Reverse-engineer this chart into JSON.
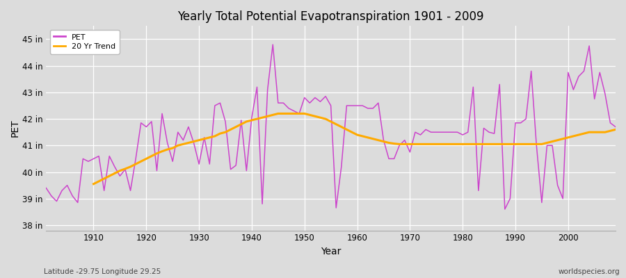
{
  "title": "Yearly Total Potential Evapotranspiration 1901 - 2009",
  "xlabel": "Year",
  "ylabel": "PET",
  "bottom_left_label": "Latitude -29.75 Longitude 29.25",
  "bottom_right_label": "worldspecies.org",
  "pet_color": "#cc44cc",
  "trend_color": "#ffaa00",
  "bg_color": "#dcdcdc",
  "ylim": [
    37.8,
    45.5
  ],
  "yticks": [
    38,
    39,
    40,
    41,
    42,
    43,
    44,
    45
  ],
  "ytick_labels": [
    "38 in",
    "39 in",
    "40 in",
    "41 in",
    "42 in",
    "43 in",
    "44 in",
    "45 in"
  ],
  "years": [
    1901,
    1902,
    1903,
    1904,
    1905,
    1906,
    1907,
    1908,
    1909,
    1910,
    1911,
    1912,
    1913,
    1914,
    1915,
    1916,
    1917,
    1918,
    1919,
    1920,
    1921,
    1922,
    1923,
    1924,
    1925,
    1926,
    1927,
    1928,
    1929,
    1930,
    1931,
    1932,
    1933,
    1934,
    1935,
    1936,
    1937,
    1938,
    1939,
    1940,
    1941,
    1942,
    1943,
    1944,
    1945,
    1946,
    1947,
    1948,
    1949,
    1950,
    1951,
    1952,
    1953,
    1954,
    1955,
    1956,
    1957,
    1958,
    1959,
    1960,
    1961,
    1962,
    1963,
    1964,
    1965,
    1966,
    1967,
    1968,
    1969,
    1970,
    1971,
    1972,
    1973,
    1974,
    1975,
    1976,
    1977,
    1978,
    1979,
    1980,
    1981,
    1982,
    1983,
    1984,
    1985,
    1986,
    1987,
    1988,
    1989,
    1990,
    1991,
    1992,
    1993,
    1994,
    1995,
    1996,
    1997,
    1998,
    1999,
    2000,
    2001,
    2002,
    2003,
    2004,
    2005,
    2006,
    2007,
    2008,
    2009
  ],
  "pet_values": [
    39.4,
    39.1,
    38.9,
    39.3,
    39.5,
    39.1,
    38.85,
    40.5,
    40.4,
    40.5,
    40.6,
    39.3,
    40.6,
    40.2,
    39.85,
    40.1,
    39.3,
    40.5,
    41.85,
    41.7,
    41.9,
    40.05,
    42.2,
    41.1,
    40.4,
    41.5,
    41.2,
    41.7,
    41.1,
    40.3,
    41.3,
    40.3,
    42.5,
    42.6,
    41.9,
    40.1,
    40.25,
    41.95,
    40.05,
    42.05,
    43.2,
    38.8,
    43.1,
    44.8,
    42.6,
    42.6,
    42.4,
    42.3,
    42.2,
    42.8,
    42.6,
    42.8,
    42.65,
    42.85,
    42.5,
    38.65,
    40.2,
    42.5,
    42.5,
    42.5,
    42.5,
    42.4,
    42.4,
    42.6,
    41.2,
    40.5,
    40.5,
    41.0,
    41.2,
    40.75,
    41.5,
    41.4,
    41.6,
    41.5,
    41.5,
    41.5,
    41.5,
    41.5,
    41.5,
    41.4,
    41.5,
    43.2,
    39.3,
    41.65,
    41.5,
    41.45,
    43.3,
    38.6,
    39.0,
    41.85,
    41.85,
    42.0,
    43.8,
    41.0,
    38.85,
    41.0,
    41.0,
    39.5,
    39.0,
    43.75,
    43.1,
    43.6,
    43.8,
    44.75,
    42.75,
    43.75,
    42.95,
    41.85,
    41.7
  ],
  "trend_years": [
    1910,
    1911,
    1912,
    1913,
    1914,
    1915,
    1916,
    1917,
    1918,
    1919,
    1920,
    1921,
    1922,
    1923,
    1924,
    1925,
    1926,
    1927,
    1928,
    1929,
    1930,
    1931,
    1932,
    1933,
    1934,
    1935,
    1936,
    1937,
    1938,
    1939,
    1940,
    1941,
    1942,
    1943,
    1944,
    1945,
    1946,
    1947,
    1948,
    1949,
    1950,
    1951,
    1952,
    1953,
    1954,
    1955,
    1956,
    1957,
    1958,
    1959,
    1960,
    1961,
    1962,
    1963,
    1964,
    1965,
    1966,
    1967,
    1968,
    1969,
    1970,
    1971,
    1972,
    1973,
    1974,
    1975,
    1976,
    1977,
    1978,
    1979,
    1980,
    1981,
    1982,
    1983,
    1984,
    1985,
    1986,
    1987,
    1988,
    1989,
    1990,
    1991,
    1992,
    1993,
    1994,
    1995,
    1996,
    1997,
    1998,
    1999,
    2000,
    2001,
    2002,
    2003,
    2004,
    2005,
    2006,
    2007,
    2008,
    2009
  ],
  "trend_values": [
    39.55,
    39.65,
    39.75,
    39.85,
    39.95,
    40.05,
    40.12,
    40.2,
    40.3,
    40.4,
    40.5,
    40.6,
    40.7,
    40.78,
    40.85,
    40.9,
    41.0,
    41.05,
    41.1,
    41.15,
    41.2,
    41.25,
    41.3,
    41.35,
    41.45,
    41.5,
    41.6,
    41.7,
    41.8,
    41.9,
    41.95,
    42.0,
    42.05,
    42.1,
    42.15,
    42.2,
    42.2,
    42.2,
    42.2,
    42.2,
    42.2,
    42.15,
    42.1,
    42.05,
    42.0,
    41.9,
    41.8,
    41.7,
    41.6,
    41.5,
    41.4,
    41.35,
    41.3,
    41.25,
    41.2,
    41.15,
    41.1,
    41.07,
    41.05,
    41.05,
    41.05,
    41.05,
    41.05,
    41.05,
    41.05,
    41.05,
    41.05,
    41.05,
    41.05,
    41.05,
    41.05,
    41.05,
    41.05,
    41.05,
    41.05,
    41.05,
    41.05,
    41.05,
    41.05,
    41.05,
    41.05,
    41.05,
    41.05,
    41.05,
    41.05,
    41.05,
    41.1,
    41.15,
    41.2,
    41.25,
    41.3,
    41.35,
    41.4,
    41.45,
    41.5,
    41.5,
    41.5,
    41.5,
    41.55,
    41.6
  ]
}
